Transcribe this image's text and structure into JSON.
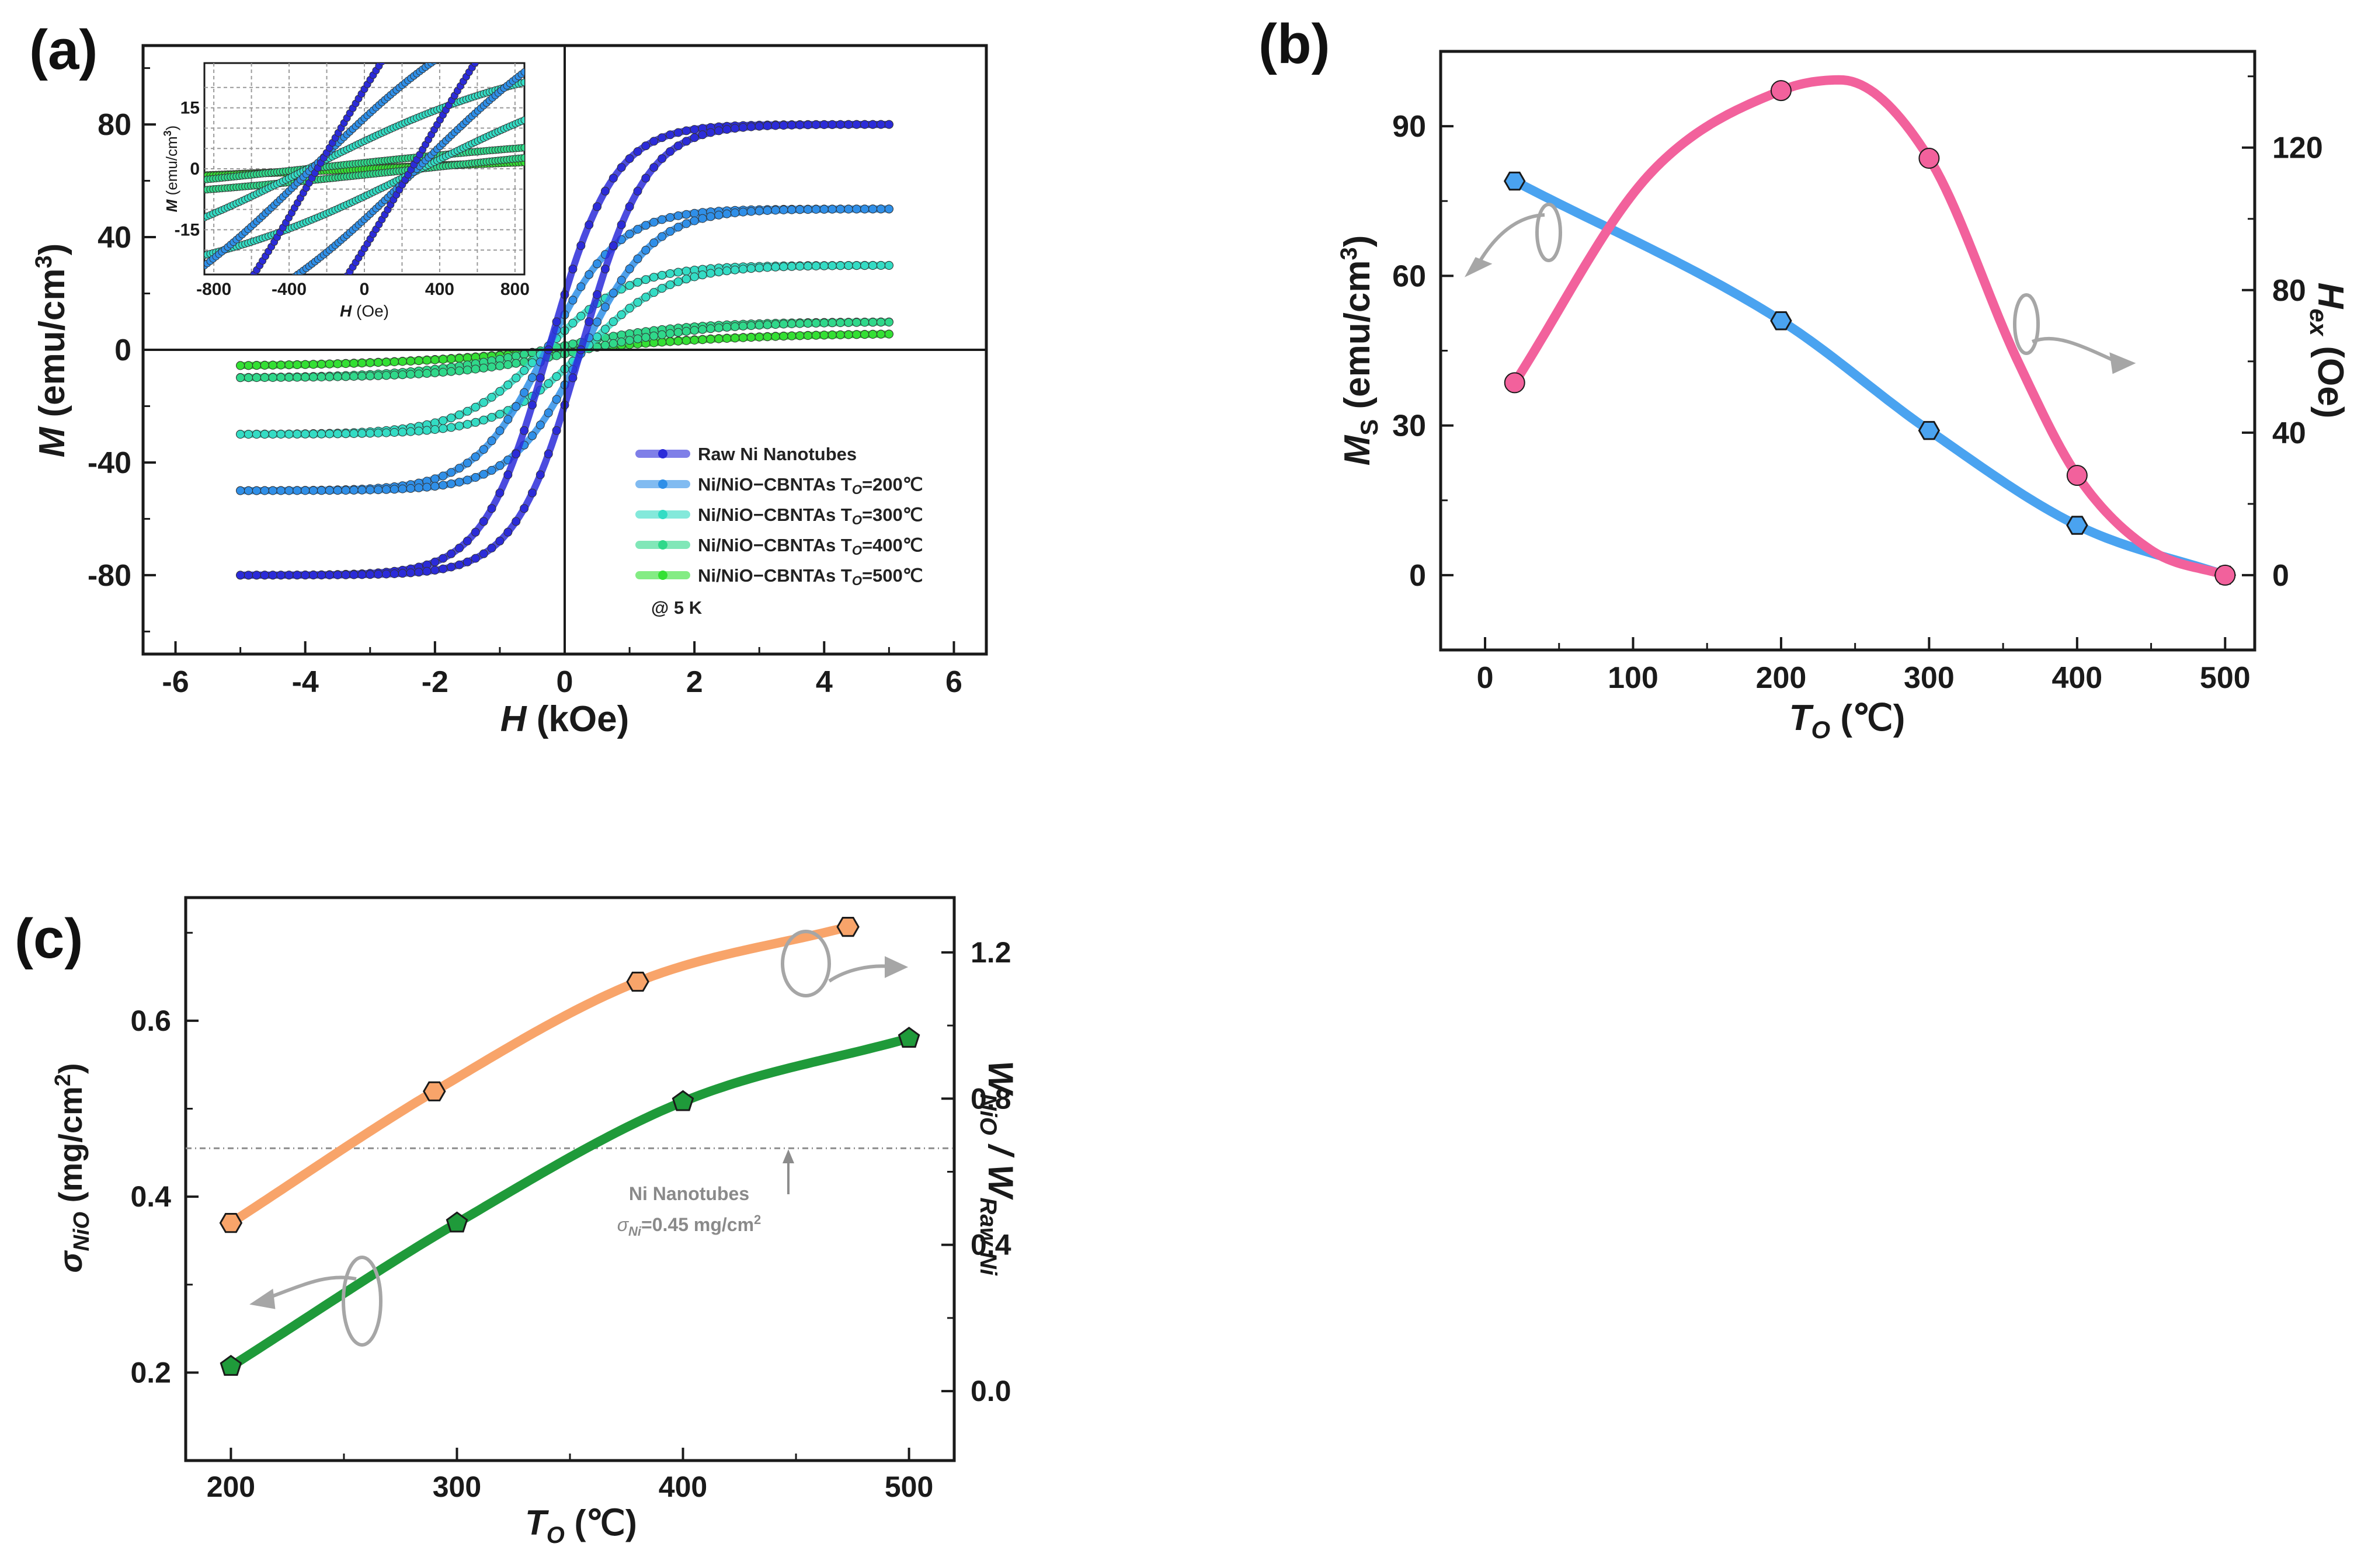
{
  "chart_data": [
    {
      "panel": "(a)",
      "type": "line",
      "title": "",
      "xlabel": "H (kOe)",
      "ylabel": "M (emu/cm3)",
      "x_ticks": [
        "-6",
        "-4",
        "-2",
        "0",
        "2",
        "4",
        "6"
      ],
      "y_ticks": [
        "80",
        "40",
        "0",
        "-40",
        "-80"
      ],
      "xlim": [
        -6.5,
        6.5
      ],
      "ylim": [
        -108,
        108
      ],
      "annotation": "@ 5 K",
      "series": [
        {
          "name": "Raw Ni Nanotubes",
          "color": "#2b2bd9",
          "Ms": 80,
          "Hc": 0.25,
          "w": 1.0
        },
        {
          "name": "Ni/NiO-CBNTAs TO=200°C",
          "color": "#2f8fe8",
          "Ms": 50,
          "Hc": 0.28,
          "w": 1.1
        },
        {
          "name": "Ni/NiO-CBNTAs TO=300°C",
          "color": "#33dcc4",
          "Ms": 30,
          "Hc": 0.3,
          "w": 1.3
        },
        {
          "name": "Ni/NiO-CBNTAs TO=400°C",
          "color": "#2fd88a",
          "Ms": 10,
          "Hc": 0.3,
          "w": 2.0
        },
        {
          "name": "Ni/NiO-CBNTAs TO=500°C",
          "color": "#33e033",
          "Ms": 6,
          "Hc": 0.05,
          "w": 3.0
        }
      ],
      "legend_subscript": "O",
      "legend_entries": [
        {
          "prefix": "Raw Ni Nanotubes",
          "suffix": ""
        },
        {
          "prefix": "Ni/NiO−CBNTAs T",
          "suffix": "=200℃"
        },
        {
          "prefix": "Ni/NiO−CBNTAs T",
          "suffix": "=300℃"
        },
        {
          "prefix": "Ni/NiO−CBNTAs T",
          "suffix": "=400℃"
        },
        {
          "prefix": "Ni/NiO−CBNTAs T",
          "suffix": "=500℃"
        }
      ],
      "inset": {
        "xlabel": "H (Oe)",
        "ylabel": "M (emu/cm3)",
        "x_ticks": [
          "-800",
          "-400",
          "0",
          "400",
          "800"
        ],
        "y_ticks": [
          "15",
          "0",
          "-15"
        ],
        "xlim": [
          -850,
          850
        ],
        "ylim": [
          -26,
          26
        ]
      }
    },
    {
      "panel": "(b)",
      "type": "line",
      "xlabel": "TO (℃)",
      "ylabel_left": "MS (emu/cm3)",
      "ylabel_right": "Hex (Oe)",
      "x_ticks": [
        "0",
        "100",
        "200",
        "300",
        "400",
        "500"
      ],
      "y_ticks_left": [
        "0",
        "30",
        "60",
        "90"
      ],
      "y_ticks_right": [
        "0",
        "40",
        "80",
        "120"
      ],
      "xlim": [
        -30,
        520
      ],
      "ylim_left": [
        -15,
        105
      ],
      "ylim_right": [
        -21,
        147
      ],
      "series": [
        {
          "name": "MS",
          "axis": "left",
          "color": "#4aa3f0",
          "marker": "hexagon",
          "x": [
            20,
            200,
            300,
            400,
            500
          ],
          "y": [
            79,
            51,
            29,
            10,
            0
          ]
        },
        {
          "name": "Hex",
          "axis": "right",
          "color": "#f2619c",
          "marker": "circle",
          "x": [
            20,
            200,
            300,
            400,
            500
          ],
          "y": [
            54,
            136,
            117,
            28,
            0
          ]
        }
      ]
    },
    {
      "panel": "(c)",
      "type": "line",
      "xlabel": "TO (℃)",
      "ylabel_left": "σNiO (mg/cm2)",
      "ylabel_right": "WNiO / WRaw Ni",
      "x_ticks": [
        "200",
        "300",
        "400",
        "500"
      ],
      "y_ticks_left": [
        "0.2",
        "0.4",
        "0.6"
      ],
      "y_ticks_right": [
        "0.0",
        "0.4",
        "0.8",
        "1.2"
      ],
      "xlim": [
        180,
        520
      ],
      "ylim_left": [
        0.1,
        0.74
      ],
      "ylim_right": [
        -0.19,
        1.35
      ],
      "reference_line": {
        "value": 0.455,
        "label_line1": "Ni Nanotubes",
        "label_line2": "σNi=0.45 mg/cm2"
      },
      "series": [
        {
          "name": "σNiO",
          "axis": "left",
          "color": "#1f9a3a",
          "marker": "pentagon",
          "x": [
            200,
            300,
            400,
            500
          ],
          "y": [
            0.207,
            0.37,
            0.508,
            0.58
          ]
        },
        {
          "name": "WNiO / WRaw Ni",
          "axis": "right",
          "color": "#f8a46a",
          "marker": "hexagon",
          "x": [
            200,
            290,
            380,
            473
          ],
          "y": [
            0.46,
            0.82,
            1.12,
            1.27
          ]
        }
      ]
    }
  ],
  "labels": {
    "panel_a": "(a)",
    "panel_b": "(b)",
    "panel_c": "(c)",
    "a_ylabel_main": "M",
    "a_ylabel_unit": " (emu/cm",
    "a_ylabel_sup": "3",
    "a_ylabel_close": ")",
    "a_xlabel_main": "H",
    "a_xlabel_unit": " (kOe)",
    "a_annotation": "@ 5 K",
    "a_inset_ylabel_main": "M",
    "a_inset_ylabel_unit": " (emu/cm",
    "a_inset_ylabel_sup": "3",
    "a_inset_ylabel_close": ")",
    "a_inset_xlabel_main": "H",
    "a_inset_xlabel_unit": " (Oe)",
    "b_ylabel_left_main": "M",
    "b_ylabel_left_sub": "S",
    "b_ylabel_left_unit": " (emu/cm",
    "b_ylabel_left_sup": "3",
    "b_ylabel_left_close": ")",
    "b_ylabel_right_main": "H",
    "b_ylabel_right_sub": "ex",
    "b_ylabel_right_unit": " (Oe)",
    "b_xlabel_main": "T",
    "b_xlabel_sub": "O",
    "b_xlabel_unit": " (℃)",
    "c_ylabel_left_main": "σ",
    "c_ylabel_left_sub": "NiO",
    "c_ylabel_left_unit": " (mg/cm",
    "c_ylabel_left_sup": "2",
    "c_ylabel_left_close": ")",
    "c_ylabel_right_w1": "W",
    "c_ylabel_right_sub1": "NiO",
    "c_ylabel_right_slash": " / W",
    "c_ylabel_right_sub2": "Raw Ni",
    "c_xlabel_main": "T",
    "c_xlabel_sub": "O",
    "c_xlabel_unit": " (℃)",
    "c_note_line1": "Ni Nanotubes",
    "c_note_sigma": "σ",
    "c_note_sub": "Ni",
    "c_note_val": "=0.45 mg/cm",
    "c_note_sup": "2"
  },
  "colors": {
    "axis": "#1a1a1a",
    "grid": "#9a9a9a",
    "arrow": "#a6a6a6",
    "ref_line": "#8c8c8c"
  }
}
